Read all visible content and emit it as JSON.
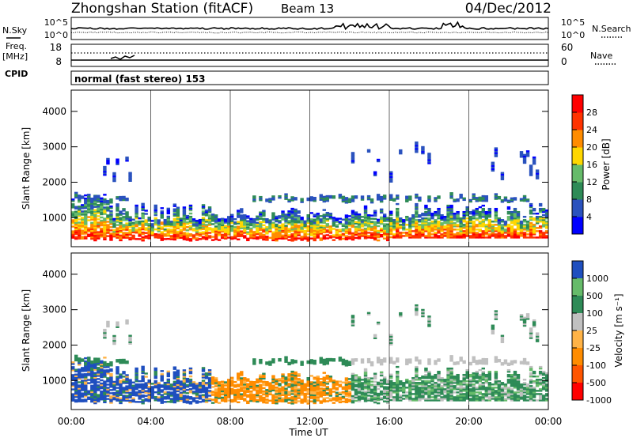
{
  "header": {
    "station": "Zhongshan Station (fitACF)",
    "beam": "Beam 13",
    "date": "04/Dec/2012"
  },
  "noise_panel": {
    "left_label": "N.Sky",
    "left_ticks": [
      "10^5",
      "10^0"
    ],
    "right_ticks": [
      "10^5",
      "10^0"
    ],
    "right_label": "N.Search"
  },
  "freq_panel": {
    "left_label_1": "Freq.",
    "left_label_2": "[MHz]",
    "left_ticks": [
      "18",
      "8"
    ],
    "right_ticks": [
      "60",
      "0"
    ],
    "right_label": "Nave",
    "cpid_label": "CPID"
  },
  "mode_text": "normal (fast stereo) 153",
  "axis_labels": {
    "ylabel": "Slant Range [km]",
    "xlabel": "Time UT"
  },
  "colors": {
    "power": [
      "#0000ff",
      "#2a52be",
      "#2e8b57",
      "#66bb6a",
      "#ffd700",
      "#ff8c00",
      "#ff3300",
      "#ff0000"
    ],
    "velocity": [
      "#ff0000",
      "#ff5500",
      "#ff8c00",
      "#ffb347",
      "#c0c0c0",
      "#2e8b57",
      "#66bb6a",
      "#1f4fbf"
    ]
  },
  "chart_data": [
    {
      "type": "heatmap",
      "panel": "power",
      "ylabel": "Slant Range [km]",
      "ylim": [
        180,
        4600
      ],
      "y_ticks": [
        "1000",
        "2000",
        "3000",
        "4000"
      ],
      "x_ticks": [
        "00:00",
        "04:00",
        "08:00",
        "12:00",
        "16:00",
        "20:00",
        "00:00"
      ],
      "xlim_hours": [
        0,
        24
      ],
      "colorbar_label": "Power [dB]",
      "colorbar_ticks": [
        "4",
        "8",
        "12",
        "16",
        "20",
        "24",
        "28"
      ],
      "colorbar_range": [
        0,
        30
      ]
    },
    {
      "type": "heatmap",
      "panel": "velocity",
      "ylabel": "Slant Range [km]",
      "ylim": [
        180,
        4600
      ],
      "y_ticks": [
        "1000",
        "2000",
        "3000",
        "4000"
      ],
      "x_ticks": [
        "00:00",
        "04:00",
        "08:00",
        "12:00",
        "16:00",
        "20:00",
        "00:00"
      ],
      "xlim_hours": [
        0,
        24
      ],
      "xlabel": "Time UT",
      "colorbar_label": "Velocity [m s⁻¹]",
      "colorbar_ticks": [
        "1000",
        "500",
        "100",
        "25",
        "-25",
        "-100",
        "-500",
        "-1000"
      ]
    }
  ]
}
